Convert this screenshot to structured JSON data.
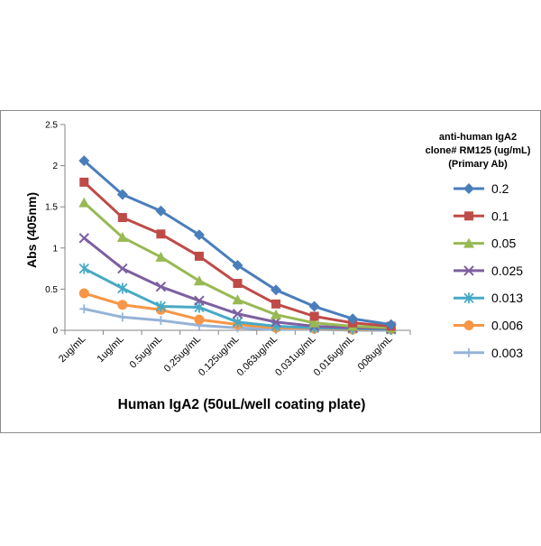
{
  "chart_data": {
    "type": "line",
    "categories": [
      "2ug/mL",
      "1ug/mL",
      "0.5ug/mL",
      "0.25ug/mL",
      "0.125ug/mL",
      "0.063ug/mL",
      "0.031ug/mL",
      "0.016ug/mL",
      ".008ug/mL"
    ],
    "ylabel": "Abs (405nm)",
    "xlabel": "Human IgA2 (50uL/well coating plate)",
    "ylim": [
      0,
      2.5
    ],
    "yticks": [
      "0",
      "0.5",
      "1",
      "1.5",
      "2",
      "2.5"
    ],
    "grid": false,
    "legend_position": "right",
    "legend_title": [
      "anti-human IgA2",
      "clone# RM125 (ug/mL)",
      "(Primary Ab)"
    ],
    "series": [
      {
        "name": "0.2",
        "color": "#4a7ebb",
        "marker": "diamond",
        "values": [
          2.06,
          1.65,
          1.45,
          1.16,
          0.79,
          0.49,
          0.29,
          0.14,
          0.07
        ]
      },
      {
        "name": "0.1",
        "color": "#be4b48",
        "marker": "square",
        "values": [
          1.8,
          1.37,
          1.17,
          0.9,
          0.57,
          0.32,
          0.17,
          0.09,
          0.05
        ]
      },
      {
        "name": "0.05",
        "color": "#98b954",
        "marker": "triangle",
        "values": [
          1.55,
          1.13,
          0.89,
          0.6,
          0.37,
          0.19,
          0.09,
          0.05,
          0.03
        ]
      },
      {
        "name": "0.025",
        "color": "#7d60a0",
        "marker": "x",
        "values": [
          1.12,
          0.75,
          0.53,
          0.36,
          0.2,
          0.1,
          0.05,
          0.03,
          0.02
        ]
      },
      {
        "name": "0.013",
        "color": "#46aac5",
        "marker": "star",
        "values": [
          0.75,
          0.51,
          0.29,
          0.28,
          0.1,
          0.05,
          0.03,
          0.02,
          0.01
        ]
      },
      {
        "name": "0.006",
        "color": "#f79646",
        "marker": "circle",
        "values": [
          0.45,
          0.31,
          0.25,
          0.13,
          0.07,
          0.03,
          0.02,
          0.01,
          0.01
        ]
      },
      {
        "name": "0.003",
        "color": "#95b3d7",
        "marker": "plus",
        "values": [
          0.26,
          0.16,
          0.12,
          0.06,
          0.03,
          0.01,
          0.01,
          0.0,
          0.0
        ]
      }
    ]
  }
}
